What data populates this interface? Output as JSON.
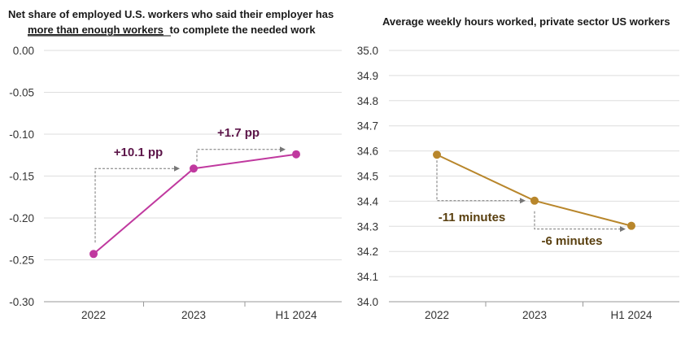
{
  "chart_data": [
    {
      "type": "line",
      "title_parts": [
        "Net share of employed U.S. workers who said their employer has",
        "more than enough workers",
        "to complete the needed work"
      ],
      "categories": [
        "2022",
        "2023",
        "H1 2024"
      ],
      "values": [
        -0.243,
        -0.141,
        -0.124
      ],
      "ylim": [
        -0.3,
        0.0
      ],
      "yticks": [
        "0.00",
        "-0.05",
        "-0.10",
        "-0.15",
        "-0.20",
        "-0.25",
        "-0.30"
      ],
      "ytick_values": [
        0.0,
        -0.05,
        -0.1,
        -0.15,
        -0.2,
        -0.25,
        -0.3
      ],
      "color": "#c0399f",
      "annotation_color": "#5c1549",
      "annotations": [
        "+10.1 pp",
        "+1.7 pp"
      ],
      "grid": true
    },
    {
      "type": "line",
      "title": "Average weekly hours worked, private sector US workers",
      "categories": [
        "2022",
        "2023",
        "H1 2024"
      ],
      "values": [
        34.585,
        34.402,
        34.302
      ],
      "ylim": [
        34.0,
        35.0
      ],
      "yticks": [
        "35.0",
        "34.9",
        "34.8",
        "34.7",
        "34.6",
        "34.5",
        "34.4",
        "34.3",
        "34.2",
        "34.1",
        "34.0"
      ],
      "ytick_values": [
        35.0,
        34.9,
        34.8,
        34.7,
        34.6,
        34.5,
        34.4,
        34.3,
        34.2,
        34.1,
        34.0
      ],
      "color": "#b8862b",
      "annotation_color": "#5a4010",
      "annotations": [
        "-11 minutes",
        "-6 minutes"
      ],
      "grid": true
    }
  ]
}
